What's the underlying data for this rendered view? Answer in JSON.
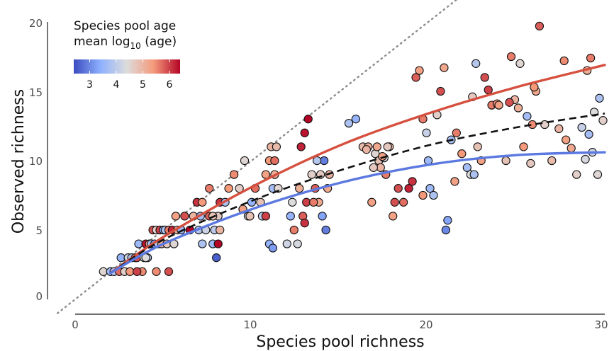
{
  "chart_data": {
    "type": "scatter",
    "xlabel": "Species pool richness",
    "ylabel": "Observed richness",
    "xlim": [
      0,
      30
    ],
    "ylim": [
      0,
      20
    ],
    "x_ticks": [
      "0",
      "10",
      "20",
      "30"
    ],
    "y_ticks": [
      "0",
      "5",
      "10",
      "15",
      "20"
    ],
    "grid": false,
    "legend": {
      "title_line1": "Species pool age",
      "title_line2_prefix": "mean log",
      "title_line2_sub": "10",
      "title_line2_suffix": " (age)",
      "placement": "top-left",
      "range": [
        2.4,
        6.4
      ],
      "ticks": [
        "3",
        "4",
        "5",
        "6"
      ],
      "colors": [
        "#3b4cc0",
        "#8db0fe",
        "#dddcdc",
        "#f49a7b",
        "#b40426"
      ]
    },
    "reference_line": {
      "style": "dotted",
      "color": "#8c8c8c",
      "slope": 1,
      "intercept": 0
    },
    "curves": [
      {
        "color": "#d6503f",
        "style": "solid",
        "x": [
          2,
          5,
          10,
          15,
          20,
          25,
          30
        ],
        "y": [
          1.9,
          4.5,
          8.1,
          11.1,
          13.4,
          15.3,
          16.9
        ]
      },
      {
        "color": "#111111",
        "style": "dashed",
        "x": [
          2,
          5,
          10,
          15,
          20,
          25,
          30
        ],
        "y": [
          1.9,
          4.3,
          7.1,
          9.3,
          11.1,
          12.4,
          13.4
        ]
      },
      {
        "color": "#5b79e0",
        "style": "solid",
        "x": [
          2,
          5,
          10,
          15,
          20,
          25,
          30
        ],
        "y": [
          1.9,
          4.0,
          6.5,
          8.4,
          9.7,
          10.4,
          10.6
        ]
      }
    ],
    "series": [
      {
        "x": [
          1.6,
          2.0,
          2.2,
          2.5,
          2.6,
          2.8,
          3.0,
          3.1,
          3.2,
          3.4,
          3.5,
          3.6,
          3.8,
          3.9,
          4.0,
          4.1,
          4.2,
          4.3,
          4.4,
          4.5,
          4.6,
          4.7,
          4.8,
          4.9,
          5.0,
          5.1,
          5.2,
          5.3,
          5.5,
          5.6,
          5.7,
          5.8,
          6.0,
          6.2,
          6.5,
          6.7,
          6.9,
          7.0,
          7.1,
          7.2,
          7.4,
          7.6,
          7.8,
          7.9,
          8.0,
          8.1,
          8.2,
          8.2,
          4.6,
          5.3,
          3.5,
          4.0,
          7.2,
          7.6,
          8.1,
          7.8
        ],
        "y": [
          2.0,
          2.0,
          2.0,
          2.0,
          3.0,
          2.0,
          3.0,
          2.0,
          3.0,
          3.0,
          3.0,
          4.0,
          2.0,
          3.0,
          4.0,
          3.0,
          4.0,
          4.0,
          5.0,
          4.0,
          5.0,
          4.0,
          5.0,
          4.0,
          5.0,
          5.0,
          4.0,
          5.0,
          5.0,
          4.0,
          6.0,
          5.0,
          5.0,
          6.0,
          5.0,
          6.0,
          7.0,
          5.0,
          6.0,
          7.0,
          5.0,
          6.0,
          4.0,
          5.0,
          3.0,
          6.0,
          7.0,
          5.0,
          2.0,
          2.0,
          2.0,
          3.0,
          4.0,
          8.0,
          4.0,
          6.0
        ],
        "age": [
          4.5,
          3.6,
          3.9,
          5.7,
          3.5,
          4.6,
          4.2,
          5.4,
          3.9,
          4.6,
          5.9,
          3.6,
          5.5,
          4.4,
          6.3,
          3.8,
          5.2,
          3.7,
          5.9,
          3.3,
          4.6,
          3.9,
          6.0,
          5.1,
          3.4,
          3.8,
          4.7,
          5.6,
          6.2,
          4.5,
          5.3,
          5.0,
          3.6,
          5.9,
          6.4,
          5.0,
          6.1,
          3.9,
          3.7,
          5.4,
          4.2,
          5.8,
          3.6,
          4.0,
          2.6,
          4.7,
          6.1,
          5.0,
          5.5,
          5.9,
          6.0,
          4.4,
          3.8,
          5.6,
          6.4,
          4.8
        ]
      },
      {
        "x": [
          8.5,
          8.7,
          9.0,
          9.3,
          9.6,
          9.8,
          10.0,
          10.2,
          10.5,
          10.6,
          10.8,
          11.0,
          11.1,
          11.2,
          11.3,
          11.4,
          11.5,
          12.0,
          12.2,
          12.4,
          12.6,
          12.8,
          13.0,
          13.2,
          13.4,
          13.6,
          13.8,
          14.0,
          14.2,
          14.4,
          13.1,
          12.9,
          12.7,
          11.0,
          11.2,
          10.8,
          9.9,
          9.5,
          14.1,
          13.9,
          13.5,
          12.3,
          14.3,
          13.7,
          11.3,
          13.0
        ],
        "y": [
          7.0,
          8.0,
          9.0,
          8.0,
          10.0,
          6.0,
          7.0,
          8.0,
          7.0,
          6.0,
          9.0,
          10.0,
          11.0,
          8.0,
          9.0,
          11.0,
          8.0,
          4.0,
          6.0,
          5.0,
          4.0,
          11.0,
          12.0,
          13.0,
          9.0,
          8.0,
          7.0,
          6.0,
          5.0,
          9.0,
          7.0,
          6.0,
          8.0,
          4.0,
          3.7,
          6.0,
          6.0,
          6.5,
          10.0,
          9.0,
          7.0,
          7.0,
          8.0,
          10.0,
          10.0,
          5.5
        ],
        "age": [
          3.8,
          5.4,
          5.5,
          4.6,
          4.5,
          4.2,
          3.5,
          5.7,
          4.8,
          4.0,
          5.3,
          5.4,
          5.0,
          3.7,
          5.1,
          4.9,
          4.5,
          4.2,
          3.5,
          5.6,
          4.3,
          6.2,
          6.3,
          6.4,
          4.6,
          5.8,
          5.2,
          3.3,
          2.9,
          5.0,
          6.0,
          5.8,
          5.1,
          3.5,
          3.2,
          6.0,
          4.8,
          5.3,
          2.9,
          4.7,
          5.6,
          4.4,
          5.2,
          3.9,
          5.7,
          6.1
        ]
      },
      {
        "x": [
          15.5,
          15.9,
          16.3,
          16.6,
          16.8,
          17.0,
          17.1,
          17.2,
          17.3,
          17.5,
          17.6,
          17.8,
          18.0,
          18.3,
          18.6,
          18.9,
          19.1,
          19.3,
          19.5,
          19.7,
          19.9,
          20.1,
          20.3,
          20.5,
          20.7,
          20.9,
          21.1,
          21.3,
          21.6,
          21.9,
          22.2,
          22.4,
          22.6,
          22.8,
          23.0,
          23.2,
          23.4,
          23.6,
          22.7,
          21.0,
          20.0,
          19.7,
          17.7,
          17.4,
          16.9,
          16.5,
          18.1,
          21.5,
          23.9,
          22.5
        ],
        "y": [
          12.7,
          13.0,
          11.0,
          11.0,
          7.0,
          10.5,
          11.0,
          10.0,
          9.5,
          10.2,
          9.0,
          11.0,
          6.0,
          8.0,
          7.0,
          8.0,
          8.5,
          16.0,
          16.5,
          13.0,
          12.0,
          8.0,
          7.5,
          13.3,
          15.0,
          16.7,
          5.7,
          11.5,
          12.0,
          10.5,
          9.5,
          9.0,
          9.0,
          11.0,
          10.0,
          16.0,
          15.1,
          14.0,
          17.0,
          5.0,
          10.0,
          7.5,
          11.0,
          10.3,
          9.5,
          10.8,
          7.0,
          8.5,
          14.1,
          14.6
        ],
        "age": [
          3.8,
          3.5,
          4.9,
          5.1,
          5.3,
          4.5,
          5.2,
          4.8,
          5.0,
          4.4,
          5.6,
          5.0,
          5.3,
          5.9,
          5.7,
          6.2,
          6.1,
          5.8,
          5.3,
          5.6,
          4.1,
          3.6,
          3.8,
          4.6,
          5.9,
          5.2,
          3.3,
          3.7,
          5.6,
          5.4,
          3.7,
          4.4,
          3.8,
          4.8,
          5.3,
          5.9,
          6.0,
          5.6,
          3.9,
          3.0,
          3.6,
          5.4,
          4.7,
          5.3,
          4.7,
          5.0,
          5.9,
          5.3,
          5.5,
          4.7
        ]
      },
      {
        "x": [
          24.0,
          24.4,
          24.7,
          24.9,
          25.2,
          25.4,
          25.6,
          25.9,
          26.1,
          26.3,
          26.6,
          27.0,
          27.4,
          27.8,
          28.1,
          28.4,
          28.7,
          29.0,
          29.2,
          29.4,
          29.7,
          29.9,
          29.6,
          29.1,
          28.9,
          25.1,
          24.6,
          26.0,
          27.7,
          25.8,
          29.3
        ],
        "y": [
          14.0,
          10.0,
          17.5,
          14.4,
          17.0,
          11.0,
          13.2,
          12.6,
          15.0,
          19.7,
          12.6,
          10.0,
          12.3,
          11.5,
          10.9,
          9.0,
          12.4,
          16.5,
          17.4,
          13.5,
          14.5,
          12.9,
          9.0,
          11.9,
          10.1,
          13.8,
          14.2,
          15.3,
          17.2,
          9.8,
          10.6
        ],
        "age": [
          5.3,
          4.8,
          5.6,
          5.0,
          4.5,
          5.4,
          3.7,
          5.5,
          5.2,
          5.8,
          4.6,
          4.9,
          5.0,
          5.3,
          5.2,
          4.6,
          4.1,
          5.1,
          5.6,
          4.4,
          3.8,
          4.6,
          4.5,
          3.7,
          4.3,
          5.1,
          5.9,
          5.4,
          5.5,
          4.7,
          4.2
        ]
      }
    ]
  }
}
